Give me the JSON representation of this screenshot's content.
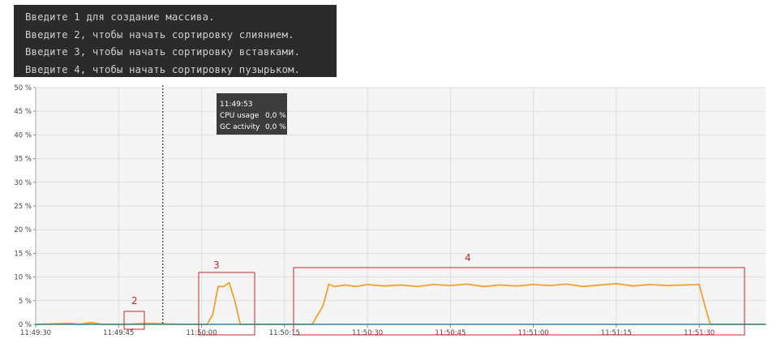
{
  "console": {
    "lines": [
      "Введите 1 для создание массива.",
      "Введите 2, чтобы начать сортировку слиянием.",
      "Введите 3, чтобы начать сортировку вставками.",
      "Введите 4, чтобы начать сортировку пузырьком."
    ]
  },
  "tooltip": {
    "time": "11:49:53",
    "rows": [
      {
        "label": "CPU usage",
        "value": "0,0 %"
      },
      {
        "label": "GC activity",
        "value": "0,0 %"
      }
    ]
  },
  "annotations": [
    {
      "label": "2"
    },
    {
      "label": "3"
    },
    {
      "label": "4"
    }
  ],
  "colors": {
    "console_bg": "#2b2b2b",
    "cpu_line": "#f0a030",
    "gc_line": "#2a8a9a",
    "annotation": "#c0282d",
    "tooltip_bg": "#3c3c3c"
  },
  "chart_data": {
    "type": "line",
    "ylim": [
      0,
      50
    ],
    "yticks": [
      0,
      5,
      10,
      15,
      20,
      25,
      30,
      35,
      40,
      45,
      50
    ],
    "ytick_labels": [
      "0 %",
      "5 %",
      "10 %",
      "15 %",
      "20 %",
      "25 %",
      "30 %",
      "35 %",
      "40 %",
      "45 %",
      "50 %"
    ],
    "xlim": [
      "11:49:30",
      "11:51:42"
    ],
    "xticks": [
      "11:49:30",
      "11:49:45",
      "11:50:00",
      "11:50:15",
      "11:50:30",
      "11:50:45",
      "11:51:00",
      "11:51:15",
      "11:51:30"
    ],
    "grid": true,
    "marker_time": "11:49:53",
    "series": [
      {
        "name": "CPU usage",
        "x": [
          "11:49:30",
          "11:49:36",
          "11:49:38",
          "11:49:40",
          "11:49:42",
          "11:49:46",
          "11:49:50",
          "11:49:57",
          "11:50:01",
          "11:50:02",
          "11:50:03",
          "11:50:04",
          "11:50:05",
          "11:50:06",
          "11:50:07",
          "11:50:20",
          "11:50:22",
          "11:50:23",
          "11:50:24",
          "11:50:26",
          "11:50:28",
          "11:50:30",
          "11:50:33",
          "11:50:36",
          "11:50:39",
          "11:50:42",
          "11:50:45",
          "11:50:48",
          "11:50:51",
          "11:50:54",
          "11:50:57",
          "11:51:00",
          "11:51:03",
          "11:51:06",
          "11:51:09",
          "11:51:12",
          "11:51:15",
          "11:51:18",
          "11:51:21",
          "11:51:24",
          "11:51:27",
          "11:51:30",
          "11:51:31",
          "11:51:32",
          "11:51:42"
        ],
        "y": [
          0,
          0.2,
          0,
          0.4,
          0,
          0,
          0.2,
          0,
          0,
          2,
          8,
          8,
          8.8,
          5,
          0,
          0,
          4,
          8.5,
          8,
          8.3,
          8,
          8.4,
          8.1,
          8.3,
          8,
          8.4,
          8.2,
          8.5,
          8,
          8.3,
          8.1,
          8.4,
          8.2,
          8.5,
          8,
          8.3,
          8.6,
          8.1,
          8.4,
          8.2,
          8.3,
          8.4,
          4,
          0,
          0
        ]
      },
      {
        "name": "GC activity",
        "x": [
          "11:49:30",
          "11:51:42"
        ],
        "y": [
          0,
          0
        ]
      }
    ]
  }
}
